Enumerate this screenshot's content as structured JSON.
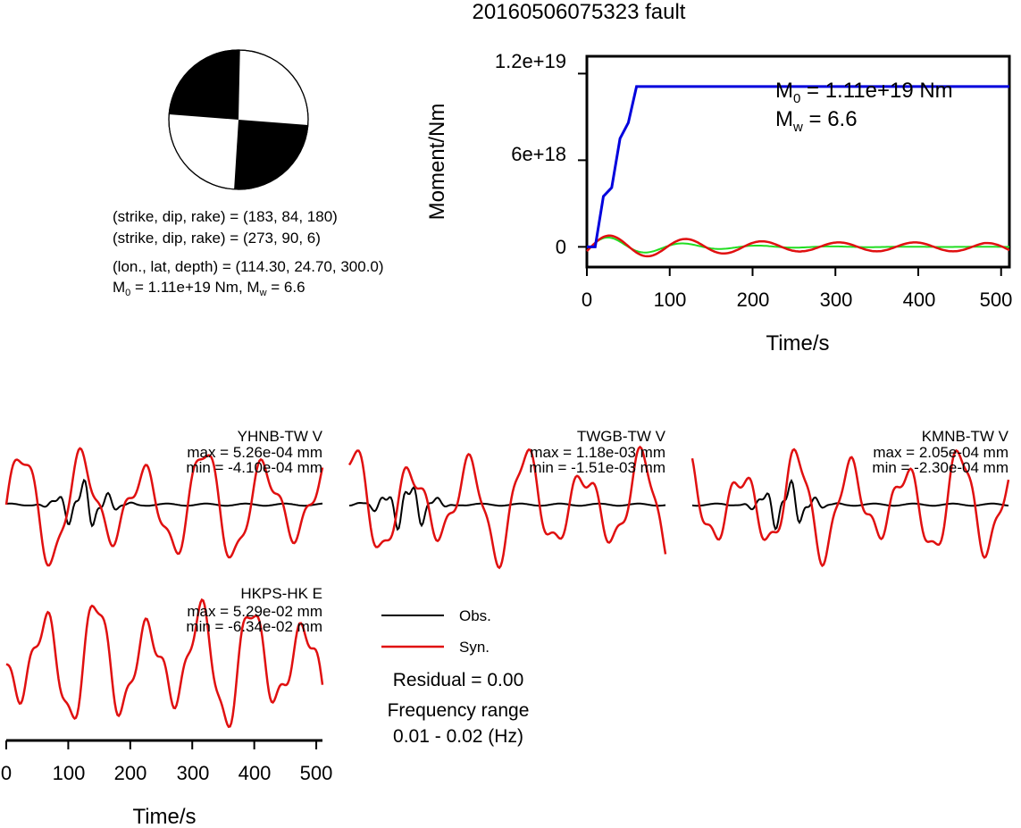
{
  "title": "20160506075323 fault",
  "mechanism": {
    "lines": [
      "(strike, dip, rake) = (183, 84, 180)",
      "(strike, dip, rake) = (273, 90, 6)"
    ],
    "location_line": "(lon., lat, depth) = (114.30, 24.70, 300.0)",
    "m0_prefix": "M",
    "m0_sub": "0",
    "m0_mid": " = 1.11e+19 Nm, M",
    "mw_sub": "w",
    "mw_tail": " = 6.6"
  },
  "moment_chart": {
    "ylabel": "Moment/Nm",
    "xlabel": "Time/s",
    "ytick_labels": [
      "1.2e+19",
      "6e+18",
      "0"
    ],
    "xtick_labels": [
      "0",
      "100",
      "200",
      "300",
      "400",
      "500"
    ],
    "ann_m0_prefix": "M",
    "ann_m0_sub": "0",
    "ann_m0_tail": " = 1.11e+19 Nm",
    "ann_mw_prefix": "M",
    "ann_mw_sub": "w",
    "ann_mw_tail": " = 6.6"
  },
  "stations": [
    {
      "name": "YHNB-TW V",
      "max": "max = 5.26e-04 mm",
      "min": "min = -4.10e-04 mm"
    },
    {
      "name": "TWGB-TW V",
      "max": "max = 1.18e-03 mm",
      "min": "min = -1.51e-03 mm"
    },
    {
      "name": "KMNB-TW V",
      "max": "max = 2.05e-04 mm",
      "min": "min = -2.30e-04 mm"
    },
    {
      "name": "HKPS-HK E",
      "max": "max = 5.29e-02 mm",
      "min": "min = -6.34e-02 mm"
    }
  ],
  "legend": {
    "obs": "Obs.",
    "syn": "Syn."
  },
  "residual": "Residual = 0.00",
  "freq_title": "Frequency range",
  "freq_value": "0.01 - 0.02 (Hz)",
  "wave_axis": {
    "xlabel": "Time/s",
    "xtick_labels": [
      "0",
      "100",
      "200",
      "300",
      "400",
      "500"
    ]
  },
  "colors": {
    "observed": "#000000",
    "synthetic": "#e01010",
    "cumulative_moment": "#0000dd",
    "moment_rate": "#22dd22",
    "moment_rate_syn": "#e01010"
  },
  "chart_data": [
    {
      "type": "line",
      "title": "",
      "xlabel": "Time/s",
      "ylabel": "Moment/Nm",
      "xlim": [
        0,
        510
      ],
      "ylim": [
        -1.4e+18,
        1.32e+19
      ],
      "series": [
        {
          "name": "",
          "x": [
            0,
            10,
            20,
            30,
            40,
            50,
            60,
            510
          ],
          "y": [
            0,
            0,
            3.5e+18,
            4.1e+18,
            7.5e+18,
            8.6e+18,
            1.11e+19,
            1.11e+19
          ]
        }
      ]
    },
    {
      "type": "line",
      "xlabel": "Time/s",
      "xlim": [
        0,
        510
      ],
      "series": [
        {
          "name": "Obs."
        },
        {
          "name": "Syn."
        }
      ]
    }
  ]
}
